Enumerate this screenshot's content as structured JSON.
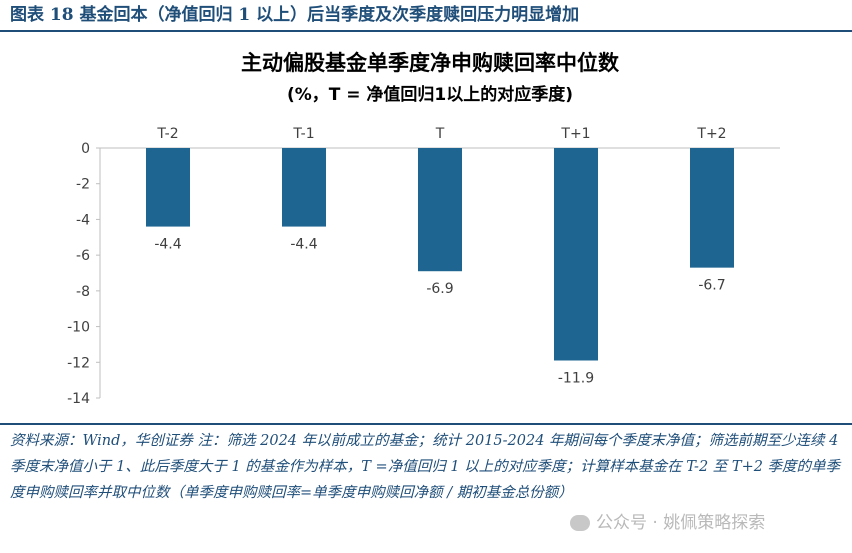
{
  "figure_label": "图表 18 基金回本（净值回归 1 以上）后当季度及次季度赎回压力明显增加",
  "source_note": "资料来源：Wind，华创证券 注：筛选 2024 年以前成立的基金；统计 2015-2024 年期间每个季度末净值；筛选前期至少连续 4 季度末净值小于 1、此后季度大于 1 的基金作为样本，T =净值回归 1 以上的对应季度；计算样本基金在 T-2 至 T+2 季度的单季度申购赎回率并取中位数（单季度申购赎回率=单季度申购赎回净额 / 期初基金总份额）",
  "watermark": "公众号 · 姚佩策略探索",
  "colors": {
    "bar": "#1e6591",
    "accent": "#1f4e79"
  },
  "chart_data": {
    "type": "bar",
    "title": "主动偏股基金单季度净申购赎回率中位数",
    "subtitle": "(%，T = 净值回归1以上的对应季度)",
    "categories": [
      "T-2",
      "T-1",
      "T",
      "T+1",
      "T+2"
    ],
    "values": [
      -4.4,
      -4.4,
      -6.9,
      -11.9,
      -6.7
    ],
    "value_labels": [
      "-4.4",
      "-4.4",
      "-6.9",
      "-11.9",
      "-6.7"
    ],
    "xlabel": "",
    "ylabel": "",
    "ylim": [
      -14,
      0
    ],
    "yticks": [
      0,
      -2,
      -4,
      -6,
      -8,
      -10,
      -12,
      -14
    ],
    "category_axis_position": "top",
    "grid": false,
    "legend": "none"
  }
}
